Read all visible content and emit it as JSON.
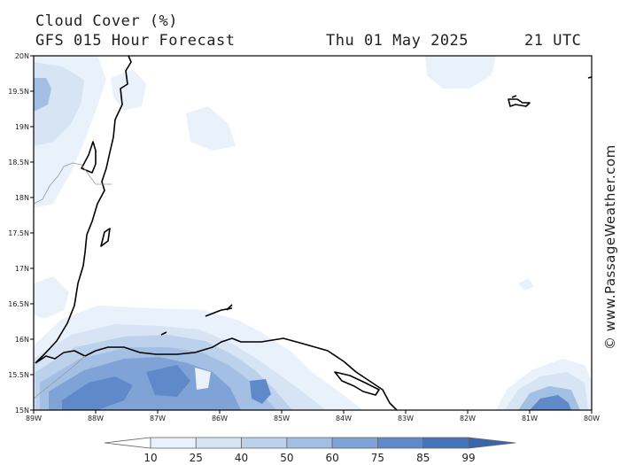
{
  "header": {
    "title": "Cloud Cover (%)",
    "subtitle": "GFS 015 Hour Forecast",
    "date": "Thu 01 May 2025",
    "time": "21 UTC"
  },
  "credit": "© www.PassageWeather.com",
  "axes": {
    "lat_labels": [
      "20N",
      "19.5N",
      "19N",
      "18.5N",
      "18N",
      "17.5N",
      "17N",
      "16.5N",
      "16N",
      "15.5N",
      "15N"
    ],
    "lon_labels": [
      "89W",
      "88W",
      "87W",
      "86W",
      "85W",
      "84W",
      "83W",
      "82W",
      "81W",
      "80W"
    ],
    "lat_range": [
      15,
      20
    ],
    "lon_range": [
      -89,
      -80
    ]
  },
  "colorbar": {
    "levels": [
      "10",
      "25",
      "40",
      "50",
      "60",
      "75",
      "85",
      "99"
    ],
    "colors": [
      "#ffffff",
      "#e9f1fa",
      "#d6e4f4",
      "#bcd1ec",
      "#a3bfe3",
      "#7fa3d6",
      "#5f89c8",
      "#4474b9",
      "#3a66ab"
    ]
  }
}
